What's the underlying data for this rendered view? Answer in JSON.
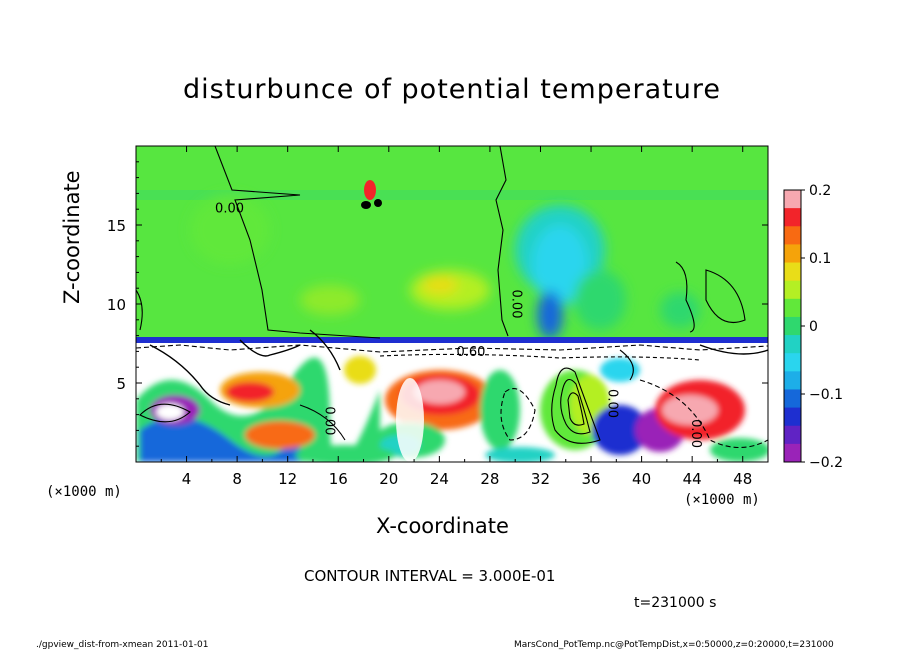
{
  "chart_data": {
    "type": "heatmap",
    "title": "disturbunce of potential temperature",
    "xlabel": "X-coordinate",
    "ylabel": "Z-coordinate",
    "x_unit": "(×1000 m)",
    "xlim": [
      0,
      50
    ],
    "ylim": [
      0,
      20
    ],
    "x_ticks": [
      "4",
      "8",
      "12",
      "16",
      "20",
      "24",
      "28",
      "32",
      "36",
      "40",
      "44",
      "48"
    ],
    "y_ticks": [
      "5",
      "10",
      "15"
    ],
    "colorbar": {
      "range": [
        -0.2,
        0.2
      ],
      "tick_labels": [
        "0.2",
        "0.1",
        "0",
        "−0.1",
        "−0.2"
      ],
      "colors": [
        "#f7a8b0",
        "#f2242a",
        "#f86a12",
        "#f5a30a",
        "#e9dd18",
        "#b4ef24",
        "#61e83a",
        "#2fd86e",
        "#21d2c4",
        "#2ad5ee",
        "#1daee8",
        "#1568da",
        "#1e2fd0",
        "#6023c4",
        "#9a23b8"
      ]
    },
    "contour_labels": [
      {
        "text": "0.00",
        "x": 7.4,
        "z": 15.8,
        "rotate": false
      },
      {
        "text": "0.00",
        "x": 29.8,
        "z": 10.0,
        "rotate": true
      },
      {
        "text": "0.60",
        "x": 26.5,
        "z": 6.7,
        "rotate": false
      },
      {
        "text": "0.00",
        "x": 37.4,
        "z": 3.7,
        "rotate": true
      },
      {
        "text": "0.00",
        "x": 15.0,
        "z": 2.6,
        "rotate": true
      },
      {
        "text": "0.00",
        "x": 44.0,
        "z": 1.8,
        "rotate": true
      }
    ],
    "contour_interval": "CONTOUR INTERVAL = 3.000E-01",
    "time": "t=231000 s"
  },
  "footer": {
    "left": "./gpview_dist-from-xmean  2011-01-01",
    "right": "MarsCond_PotTemp.nc@PotTempDist,x=0:50000,z=0:20000,t=231000"
  }
}
